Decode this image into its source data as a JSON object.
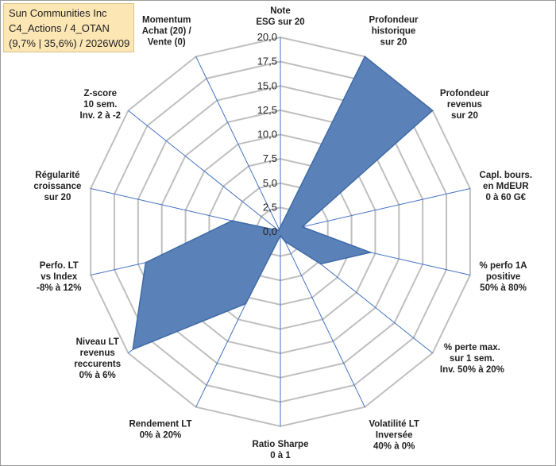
{
  "title_box": {
    "line1": "Sun Communities Inc",
    "line2": "C4_Actions / 4_OTAN",
    "line3": "(9,7% | 35,6%) / 2026W09"
  },
  "colors": {
    "fill": "#5b82b8",
    "stroke": "#3f6aa6",
    "spoke": "#4472c4",
    "grid": "#bfbfbf",
    "title_bg": "#fbe6b4"
  },
  "chart_data": {
    "type": "radar",
    "rmin": 0,
    "rmax": 20,
    "ticks": [
      "0,0",
      "2,5",
      "5,0",
      "7,5",
      "10,0",
      "12,5",
      "15,0",
      "17,5",
      "20,0"
    ],
    "tick_values": [
      0,
      2.5,
      5,
      7.5,
      10,
      12.5,
      15,
      17.5,
      20
    ],
    "axes": [
      {
        "lines": [
          "Note",
          "ESG sur 20"
        ],
        "value": 0.5
      },
      {
        "lines": [
          "Profondeur",
          "historique",
          "sur 20"
        ],
        "value": 20
      },
      {
        "lines": [
          "Profondeur",
          "revenus",
          "sur 20"
        ],
        "value": 20
      },
      {
        "lines": [
          "Capl. bours.",
          "en MdEUR",
          "0 à 60 G€"
        ],
        "value": 2.3
      },
      {
        "lines": [
          "% perfo 1A",
          "positive",
          "50% à 80%"
        ],
        "value": 9.5
      },
      {
        "lines": [
          "% perte max.",
          "sur 1 sem.",
          "Inv. 50% à 20%"
        ],
        "value": 5.3
      },
      {
        "lines": [
          "Volatilité LT",
          "Inversée",
          "40% à 0%"
        ],
        "value": 1.1
      },
      {
        "lines": [
          "Ratio Sharpe",
          "0 à 1"
        ],
        "value": 0.4
      },
      {
        "lines": [
          "Rendement LT",
          "0% à 20%"
        ],
        "value": 8.2
      },
      {
        "lines": [
          "Niveau LT",
          "revenus",
          "reccurents",
          "0% à 6%"
        ],
        "value": 19.4
      },
      {
        "lines": [
          "Perfo. LT",
          "vs Index",
          "-8% à 12%"
        ],
        "value": 14.2
      },
      {
        "lines": [
          "Régularité",
          "croissance",
          "sur 20"
        ],
        "value": 5.1
      },
      {
        "lines": [
          "Z-score",
          "10 sem.",
          "Inv. 2 à -2"
        ],
        "value": 0.2
      },
      {
        "lines": [
          "Momentum",
          "Achat (20) /",
          "Vente (0)"
        ],
        "value": 0.3
      }
    ]
  }
}
